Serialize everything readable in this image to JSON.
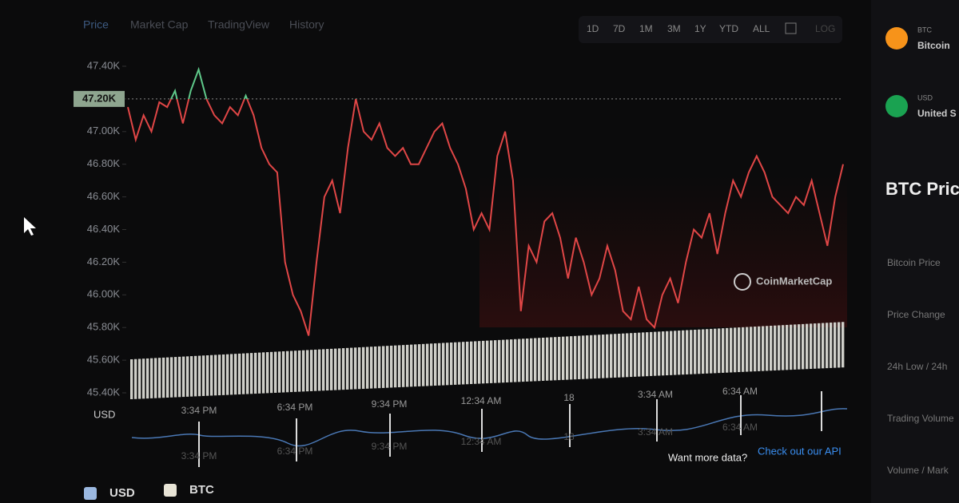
{
  "tabs": [
    "Price",
    "Market Cap",
    "TradingView",
    "History"
  ],
  "ranges": [
    "1D",
    "7D",
    "1M",
    "3M",
    "1Y",
    "YTD",
    "ALL",
    "LOG"
  ],
  "sidebar": {
    "coins": [
      {
        "symbol": "BTC",
        "name": "Bitcoin"
      },
      {
        "symbol": "USD",
        "name": "United S"
      }
    ],
    "heading": "BTC Price",
    "rows": [
      "Bitcoin Price",
      "Price Change",
      "24h Low / 24h",
      "Trading Volume",
      "Volume / Mark"
    ]
  },
  "watermark": "CoinMarketCap",
  "api_prompt": "Want more data?",
  "api_link": "Check out our API",
  "chart_data": {
    "type": "line",
    "y_axis_label": "USD",
    "ylim": [
      45400,
      47400
    ],
    "yticks": [
      {
        "value": 45400,
        "label": "45.40K"
      },
      {
        "value": 45600,
        "label": "45.60K"
      },
      {
        "value": 45800,
        "label": "45.80K"
      },
      {
        "value": 46000,
        "label": "46.00K"
      },
      {
        "value": 46200,
        "label": "46.20K"
      },
      {
        "value": 46400,
        "label": "46.40K"
      },
      {
        "value": 46600,
        "label": "46.60K"
      },
      {
        "value": 46800,
        "label": "46.80K"
      },
      {
        "value": 47000,
        "label": "47.00K"
      },
      {
        "value": 47200,
        "label": "47.20K"
      },
      {
        "value": 47400,
        "label": "47.40K"
      }
    ],
    "reference": {
      "value": 47200,
      "label": "47.20K"
    },
    "xtick_labels": [
      "3:34 PM",
      "6:34 PM",
      "9:34 PM",
      "12:34 AM",
      "18",
      "3:34 AM",
      "6:34 AM"
    ],
    "colors": {
      "above": "#5fc98a",
      "below": "#e04646"
    },
    "series": [
      {
        "name": "USD",
        "color": "#9bb8e0",
        "values": [
          47150,
          46950,
          47100,
          47000,
          47180,
          47150,
          47250,
          47050,
          47250,
          47380,
          47200,
          47100,
          47050,
          47150,
          47100,
          47220,
          47100,
          46900,
          46800,
          46750,
          46200,
          46000,
          45900,
          45750,
          46200,
          46600,
          46700,
          46500,
          46900,
          47200,
          47000,
          46950,
          47050,
          46900,
          46850,
          46900,
          46800,
          46800,
          46900,
          47000,
          47050,
          46900,
          46800,
          46650,
          46400,
          46500,
          46400,
          46850,
          47000,
          46700,
          45900,
          46300,
          46200,
          46450,
          46500,
          46350,
          46100,
          46350,
          46200,
          46000,
          46100,
          46300,
          46150,
          45900,
          45850,
          46050,
          45850,
          45800,
          46000,
          46100,
          45950,
          46200,
          46400,
          46350,
          46500,
          46250,
          46500,
          46700,
          46600,
          46750,
          46850,
          46750,
          46600,
          46550,
          46500,
          46600,
          46550,
          46700,
          46500,
          46300,
          46600,
          46800
        ]
      },
      {
        "name": "BTC",
        "color": "#e8e4d6",
        "values": []
      }
    ]
  }
}
